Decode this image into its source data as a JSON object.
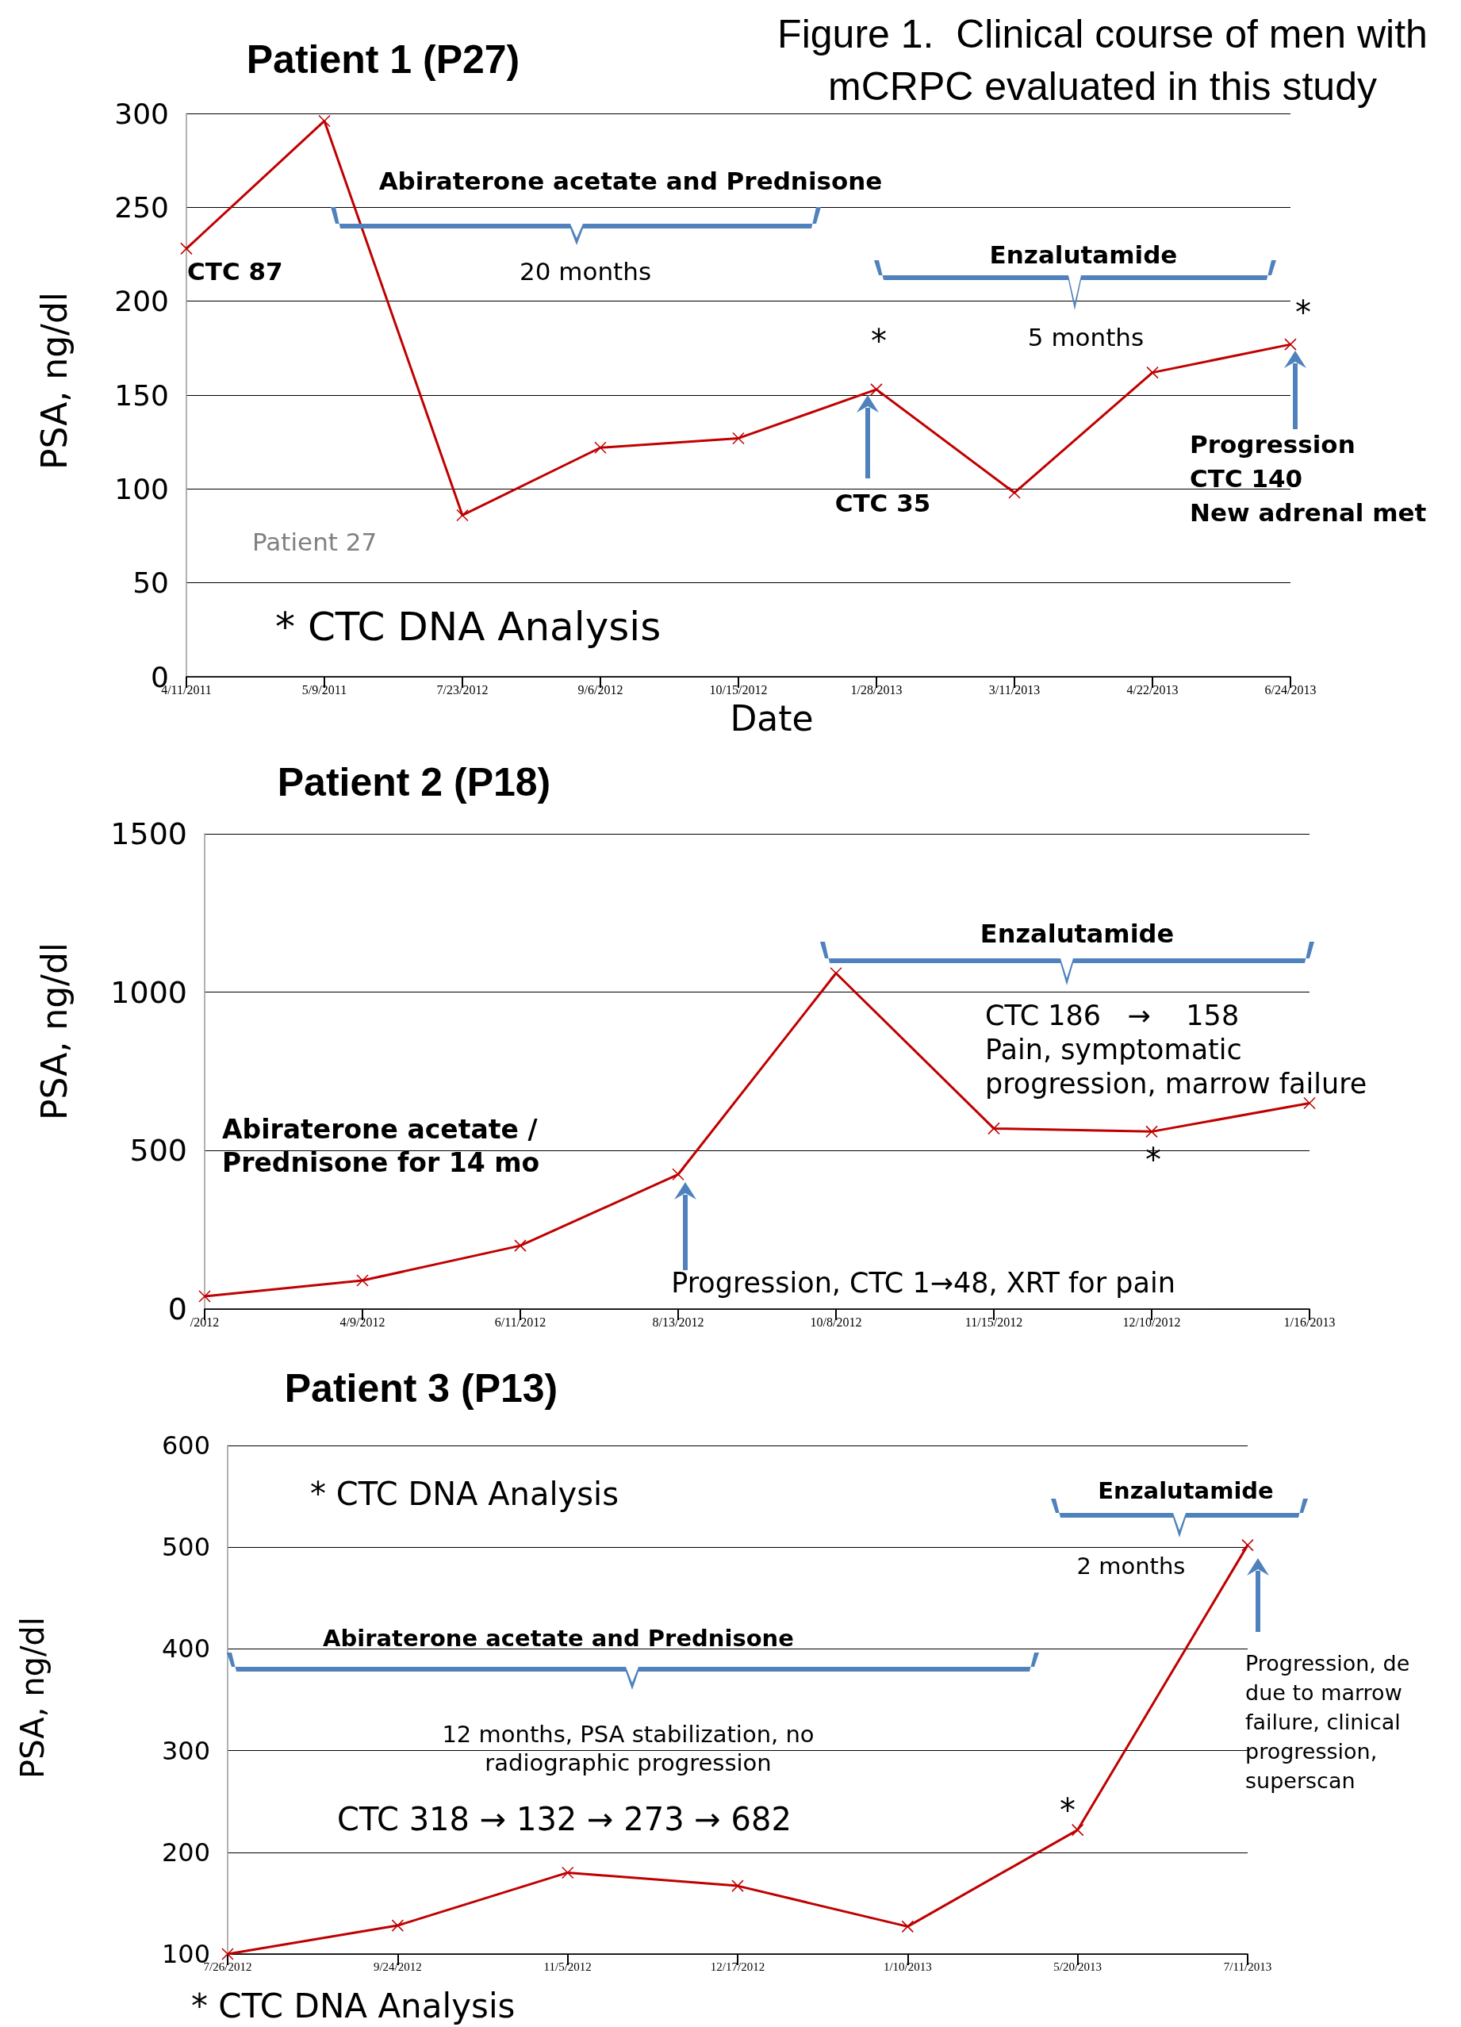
{
  "chart_data": [
    {
      "type": "line",
      "title": "Patient 1 (P27)",
      "xlabel": "Date",
      "ylabel": "PSA, ng/dl",
      "categories": [
        "4/11/2011",
        "5/9/2011",
        "7/23/2012",
        "9/6/2012",
        "10/15/2012",
        "1/28/2013",
        "3/11/2013",
        "4/22/2013",
        "6/24/2013"
      ],
      "series": [
        {
          "color": "#c00000",
          "values": [
            228,
            296,
            86,
            122,
            127,
            153,
            98,
            162,
            177
          ]
        }
      ],
      "ylim": [
        0,
        300
      ],
      "yticks": [
        0,
        50,
        100,
        150,
        200,
        250,
        300
      ],
      "grid": "y",
      "marker": "cross",
      "line_style": "solid",
      "annotations": [
        "Figure 1.  Clinical course of men with\nmCRPC evaluated in this study",
        "Abiraterone acetate and Prednisone",
        "20 months",
        "Enzalutamide",
        "5 months",
        "CTC 87",
        "*",
        "CTC 35",
        "*",
        "Progression\nCTC 140\nNew adrenal met",
        "Patient 27",
        "* CTC DNA Analysis"
      ]
    },
    {
      "type": "line",
      "title": "Patient 2 (P18)",
      "ylabel": "PSA, ng/dl",
      "categories": [
        "/2012",
        "4/9/2012",
        "6/11/2012",
        "8/13/2012",
        "10/8/2012",
        "11/15/2012",
        "12/10/2012",
        "1/16/2013"
      ],
      "series": [
        {
          "color": "#c00000",
          "values": [
            40,
            90,
            200,
            425,
            1060,
            570,
            560,
            650
          ]
        }
      ],
      "ylim": [
        0,
        1500
      ],
      "yticks": [
        0,
        500,
        1000,
        1500
      ],
      "grid": "y",
      "marker": "cross",
      "line_style": "solid",
      "annotations": [
        "Enzalutamide",
        "CTC 186   →    158\nPain, symptomatic\nprogression, marrow failure",
        "Abiraterone acetate /\nPrednisone for 14 mo",
        "Progression, CTC 1→48, XRT for pain",
        "*"
      ]
    },
    {
      "type": "line",
      "title": "Patient 3 (P13)",
      "ylabel": "PSA, ng/dl",
      "categories": [
        "7/26/2012",
        "9/24/2012",
        "11/5/2012",
        "12/17/2012",
        "1/10/2013",
        "5/20/2013",
        "7/11/2013"
      ],
      "series": [
        {
          "color": "#c00000",
          "values": [
            100,
            128,
            180,
            167,
            127,
            222,
            502
          ]
        }
      ],
      "ylim": [
        100,
        600
      ],
      "yticks": [
        100,
        200,
        300,
        400,
        500,
        600
      ],
      "grid": "y",
      "marker": "cross",
      "line_style": "solid",
      "annotations": [
        "* CTC DNA Analysis",
        "Enzalutamide",
        "2 months",
        "Abiraterone acetate and Prednisone",
        "12 months, PSA stabilization, no\nradiographic progression",
        "CTC 318 → 132 → 273 → 682",
        "*",
        "Progression, de\ndue to marrow\nfailure, clinical\nprogression,\nsuperscan",
        "* CTC DNA Analysis"
      ]
    }
  ]
}
